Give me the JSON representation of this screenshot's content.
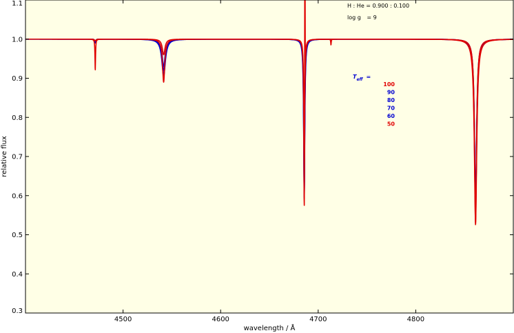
{
  "chart_data": {
    "type": "line",
    "title": "",
    "xlabel": "wavelength / Å",
    "ylabel": "relative flux",
    "xlim": [
      4400,
      4900
    ],
    "ylim": [
      0.3,
      1.1
    ],
    "xticks": [
      4500,
      4600,
      4700,
      4800
    ],
    "yticks": [
      0.3,
      0.4,
      0.5,
      0.6,
      0.7,
      0.8,
      0.9,
      1.0,
      1.1
    ],
    "ytick_labels": [
      "0.3",
      "0.4",
      "0.5",
      "0.6",
      "0.7",
      "0.8",
      "0.9",
      "1.0",
      "1.1"
    ],
    "background": "#ffffe6",
    "grid": false,
    "annotations": {
      "composition": "H : He = 0.900 : 0.100",
      "gravity_label": "log g",
      "gravity_value": "= 9",
      "legend_title": "T",
      "legend_title_sub": "eff",
      "legend_title_eq": "="
    },
    "series": [
      {
        "name": "100",
        "color": "#e00000",
        "lines": [
          {
            "c": 4471.5,
            "d": 0.08,
            "w": 0.35
          },
          {
            "c": 4541.6,
            "d": 0.11,
            "w": 1.4
          },
          {
            "c": 4685.7,
            "d": 0.43,
            "w": 0.45
          },
          {
            "c": 4713.1,
            "d": 0.015,
            "w": 0.3
          },
          {
            "c": 4861.3,
            "d": 0.475,
            "w": 1.2
          }
        ]
      },
      {
        "name": "90",
        "color": "#0000d0",
        "lines": [
          {
            "c": 4471.5,
            "d": 0.01,
            "w": 0.5
          },
          {
            "c": 4541.6,
            "d": 0.07,
            "w": 1.8
          },
          {
            "c": 4685.7,
            "d": 0.39,
            "w": 0.55
          },
          {
            "c": 4861.3,
            "d": 0.41,
            "w": 1.3
          }
        ]
      },
      {
        "name": "80",
        "color": "#0000d0",
        "lines": [
          {
            "c": 4471.5,
            "d": 0.008,
            "w": 0.6
          },
          {
            "c": 4541.6,
            "d": 0.08,
            "w": 2.0
          },
          {
            "c": 4685.7,
            "d": 0.4,
            "w": 0.6
          },
          {
            "c": 4861.3,
            "d": 0.42,
            "w": 1.35
          }
        ]
      },
      {
        "name": "70",
        "color": "#0000d0",
        "lines": [
          {
            "c": 4471.5,
            "d": 0.006,
            "w": 0.7
          },
          {
            "c": 4541.6,
            "d": 0.09,
            "w": 2.1
          },
          {
            "c": 4685.7,
            "d": 0.405,
            "w": 0.65
          },
          {
            "c": 4861.3,
            "d": 0.43,
            "w": 1.4
          }
        ]
      },
      {
        "name": "60",
        "color": "#0000d0",
        "lines": [
          {
            "c": 4471.5,
            "d": 0.005,
            "w": 0.8
          },
          {
            "c": 4541.6,
            "d": 0.095,
            "w": 2.2
          },
          {
            "c": 4685.7,
            "d": 0.41,
            "w": 0.7
          },
          {
            "c": 4861.3,
            "d": 0.44,
            "w": 1.45
          }
        ]
      },
      {
        "name": "50",
        "color": "#e00000",
        "lines": [
          {
            "c": 4471.5,
            "d": 0.004,
            "w": 0.9
          },
          {
            "c": 4541.6,
            "d": 0.04,
            "w": 1.6
          },
          {
            "c": 4685.7,
            "d": 0.33,
            "w": 0.6
          },
          {
            "c": 4861.3,
            "d": 0.47,
            "w": 1.5
          }
        ]
      }
    ],
    "legend_colors": [
      "#e00000",
      "#0000d0",
      "#0000d0",
      "#0000d0",
      "#0000d0",
      "#e00000"
    ]
  }
}
